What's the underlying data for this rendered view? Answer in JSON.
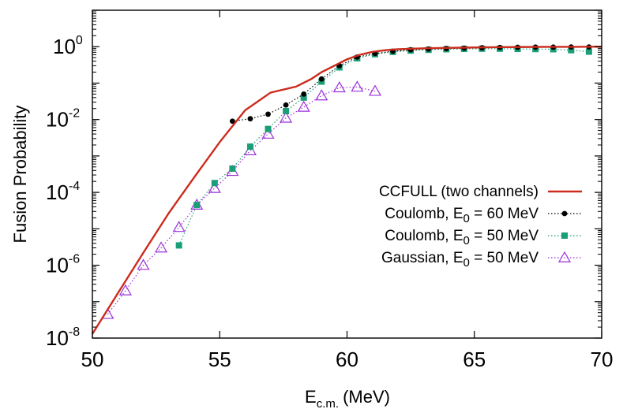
{
  "chart_data": {
    "type": "line",
    "xlabel": "E",
    "xlabel_subscript": "c.m.",
    "xlabel_unit": "(MeV)",
    "ylabel": "Fusion Probability",
    "xlim": [
      50,
      70
    ],
    "ylim": [
      1e-08,
      10
    ],
    "yscale": "log",
    "xticks": [
      "50",
      "55",
      "60",
      "65",
      "70"
    ],
    "yticks": [
      {
        "base": "10",
        "exp": "-8",
        "value": 1e-08
      },
      {
        "base": "10",
        "exp": "-6",
        "value": 1e-06
      },
      {
        "base": "10",
        "exp": "-4",
        "value": 0.0001
      },
      {
        "base": "10",
        "exp": "-2",
        "value": 0.01
      },
      {
        "base": "10",
        "exp": "0",
        "value": 1
      }
    ],
    "legend_position": "bottom-right",
    "series": [
      {
        "name": "CCFULL (two channels)",
        "style": "line",
        "color": "#cc2b1d",
        "x": [
          50.0,
          51.0,
          52.0,
          53.0,
          54.0,
          55.0,
          56.0,
          57.0,
          58.0,
          58.6,
          59.0,
          59.5,
          60.0,
          60.5,
          61.0,
          61.5,
          62.0,
          63.0,
          64.0,
          65.0,
          66.0,
          67.0,
          68.0,
          69.0,
          70.0
        ],
        "y": [
          1.3e-08,
          1.7e-07,
          2.2e-06,
          2.7e-05,
          0.00026,
          0.0024,
          0.018,
          0.055,
          0.08,
          0.13,
          0.2,
          0.3,
          0.45,
          0.6,
          0.72,
          0.8,
          0.85,
          0.9,
          0.93,
          0.95,
          0.97,
          0.98,
          0.99,
          0.99,
          1.0
        ]
      },
      {
        "name": "Coulomb, E",
        "name_subscript": "0",
        "name_suffix": " = 60 MeV",
        "style": "dotted-circle",
        "color": "#000000",
        "x": [
          55.5,
          56.2,
          56.9,
          57.6,
          58.3,
          59.0,
          59.7,
          60.4,
          61.1,
          61.8,
          62.5,
          63.2,
          63.9,
          64.6,
          65.3,
          66.0,
          66.7,
          67.4,
          68.1,
          68.8,
          69.5
        ],
        "y": [
          0.009,
          0.0105,
          0.014,
          0.025,
          0.05,
          0.13,
          0.3,
          0.52,
          0.65,
          0.75,
          0.82,
          0.86,
          0.89,
          0.91,
          0.93,
          0.95,
          0.96,
          0.97,
          0.97,
          0.98,
          0.98
        ]
      },
      {
        "name": "Coulomb, E",
        "name_subscript": "0",
        "name_suffix": " = 50 MeV",
        "style": "dotted-square",
        "color": "#1a9e77",
        "x": [
          53.4,
          54.1,
          54.8,
          55.5,
          56.2,
          56.9,
          57.6,
          58.3,
          59.0,
          59.7,
          60.4,
          61.1,
          61.8,
          62.5,
          63.2,
          63.9,
          64.6,
          65.3,
          66.0,
          66.7,
          67.4,
          68.1,
          68.8,
          69.5
        ],
        "y": [
          3.5e-06,
          4.5e-05,
          0.00018,
          0.00045,
          0.0018,
          0.0055,
          0.017,
          0.04,
          0.11,
          0.27,
          0.48,
          0.62,
          0.72,
          0.78,
          0.82,
          0.85,
          0.87,
          0.88,
          0.88,
          0.87,
          0.86,
          0.85,
          0.8,
          0.73
        ]
      },
      {
        "name": "Gaussian, E",
        "name_subscript": "0",
        "name_suffix": " = 50 MeV",
        "style": "dotted-triangle",
        "color": "#9b30d9",
        "x": [
          50.6,
          51.3,
          52.0,
          52.7,
          53.4,
          54.1,
          54.8,
          55.5,
          56.2,
          56.9,
          57.6,
          58.3,
          59.0,
          59.7,
          60.4,
          61.1
        ],
        "y": [
          4.5e-08,
          2e-07,
          1e-06,
          3e-06,
          1.1e-05,
          4.5e-05,
          0.00013,
          0.00038,
          0.0014,
          0.004,
          0.011,
          0.022,
          0.045,
          0.075,
          0.078,
          0.06
        ]
      }
    ]
  }
}
